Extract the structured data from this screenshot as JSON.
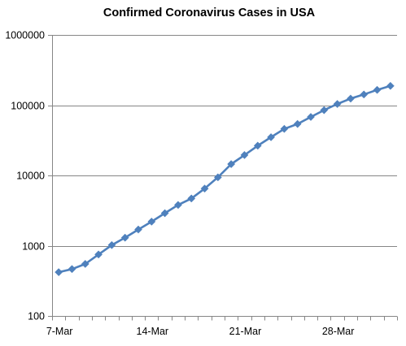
{
  "chart_data": {
    "type": "line",
    "title": "Confirmed Coronavirus Cases in USA",
    "xlabel": "",
    "ylabel": "",
    "y_scale": "log",
    "ylim": [
      100,
      1000000
    ],
    "y_ticks": [
      {
        "value": 100,
        "label": "100"
      },
      {
        "value": 1000,
        "label": "1000"
      },
      {
        "value": 10000,
        "label": "10000"
      },
      {
        "value": 100000,
        "label": "100000"
      },
      {
        "value": 1000000,
        "label": "1000000"
      }
    ],
    "x_ticks": [
      "7-Mar",
      "14-Mar",
      "21-Mar",
      "28-Mar"
    ],
    "grid": true,
    "legend": "none",
    "series_color": "#4F81BD",
    "series": [
      {
        "marker": "diamond",
        "x": [
          "7-Mar",
          "8-Mar",
          "9-Mar",
          "10-Mar",
          "11-Mar",
          "12-Mar",
          "13-Mar",
          "14-Mar",
          "15-Mar",
          "16-Mar",
          "17-Mar",
          "18-Mar",
          "19-Mar",
          "20-Mar",
          "21-Mar",
          "22-Mar",
          "23-Mar",
          "24-Mar",
          "25-Mar",
          "26-Mar",
          "27-Mar",
          "28-Mar",
          "29-Mar",
          "30-Mar",
          "31-Mar",
          "1-Apr"
        ],
        "values": [
          420,
          465,
          550,
          750,
          1020,
          1300,
          1700,
          2200,
          2900,
          3800,
          4700,
          6500,
          9400,
          14500,
          19500,
          26500,
          35000,
          46000,
          54000,
          68000,
          85000,
          104000,
          124000,
          142000,
          165000,
          188000
        ]
      }
    ]
  }
}
